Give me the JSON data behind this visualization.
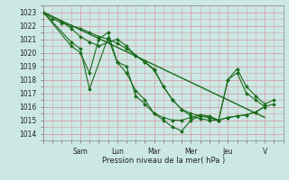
{
  "background_color": "#cce8e4",
  "grid_color": "#d4a0a8",
  "line_color": "#1a6b1a",
  "marker_color": "#1a6b1a",
  "xlabel": "Pression niveau de la mer( hPa )",
  "ylim": [
    1013.5,
    1023.5
  ],
  "yticks": [
    1014,
    1015,
    1016,
    1017,
    1018,
    1019,
    1020,
    1021,
    1022,
    1023
  ],
  "day_labels": [
    "Sam",
    "Lun",
    "Mar",
    "Mer",
    "Jeu",
    "V"
  ],
  "day_positions": [
    24,
    48,
    72,
    96,
    120,
    144
  ],
  "xlim": [
    0,
    156
  ],
  "line1_x": [
    0,
    6,
    12,
    18,
    24,
    30,
    36,
    42,
    48,
    54,
    60,
    66,
    72,
    78,
    84,
    90,
    96,
    102,
    108,
    114,
    120,
    126,
    132,
    138,
    144
  ],
  "line1_y": [
    1023.0,
    1022.5,
    1022.2,
    1022.0,
    1021.8,
    1021.5,
    1021.2,
    1021.0,
    1020.7,
    1020.3,
    1019.8,
    1019.3,
    1018.8,
    1017.5,
    1016.5,
    1015.8,
    1015.5,
    1015.3,
    1015.2,
    1015.0,
    1015.2,
    1015.3,
    1015.4,
    1015.6,
    1016.0
  ],
  "line2_x": [
    0,
    12,
    18,
    24,
    30,
    36,
    48,
    54,
    60,
    66,
    72,
    78,
    84,
    90,
    96,
    102,
    108,
    114,
    120,
    126,
    132,
    138,
    144
  ],
  "line2_y": [
    1023.0,
    1022.3,
    1021.8,
    1021.2,
    1020.8,
    1020.5,
    1021.0,
    1020.5,
    1019.8,
    1019.3,
    1018.7,
    1017.5,
    1016.5,
    1015.8,
    1015.3,
    1015.1,
    1015.0,
    1015.0,
    1015.2,
    1015.3,
    1015.4,
    1015.6,
    1016.0
  ],
  "line3_x": [
    0,
    18,
    24,
    30,
    36,
    42,
    48,
    54,
    60,
    66,
    72,
    78,
    84,
    90,
    96,
    102,
    108,
    114,
    120,
    126,
    132,
    138,
    144,
    150
  ],
  "line3_y": [
    1023.0,
    1020.5,
    1020.0,
    1018.5,
    1021.0,
    1021.5,
    1019.3,
    1018.5,
    1017.2,
    1016.5,
    1015.5,
    1015.0,
    1014.5,
    1014.2,
    1015.0,
    1015.3,
    1015.2,
    1015.0,
    1018.0,
    1018.5,
    1017.0,
    1016.5,
    1016.0,
    1016.2
  ],
  "line4_x": [
    0,
    18,
    24,
    30,
    42,
    48,
    54,
    60,
    66,
    72,
    78,
    84,
    90,
    96,
    102,
    108,
    114,
    120,
    126,
    132,
    138,
    144,
    150
  ],
  "line4_y": [
    1023.0,
    1020.8,
    1020.3,
    1017.3,
    1021.1,
    1019.3,
    1019.0,
    1016.8,
    1016.2,
    1015.5,
    1015.2,
    1015.0,
    1015.0,
    1015.2,
    1015.4,
    1015.3,
    1015.0,
    1018.0,
    1018.8,
    1017.5,
    1016.8,
    1016.2,
    1016.5
  ],
  "trend_x": [
    0,
    144
  ],
  "trend_y": [
    1023.0,
    1015.2
  ]
}
